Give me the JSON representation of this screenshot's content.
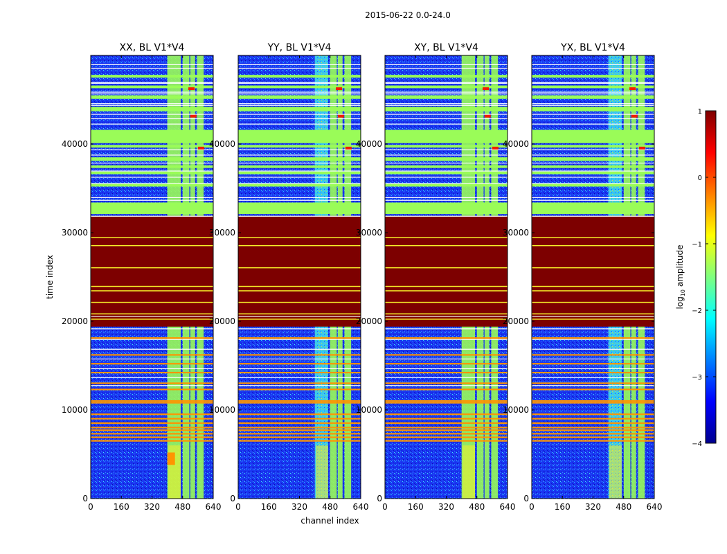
{
  "figure": {
    "suptitle": "2015-06-22 0.0-24.0",
    "colorbar": {
      "label_prefix": "log",
      "label_sub": "10",
      "label_suffix": " amplitude",
      "range": [
        -4,
        1
      ],
      "ticks": [
        1,
        0,
        -1,
        -2,
        -3,
        -4
      ],
      "tick_labels": [
        "1",
        "0",
        "−1",
        "−2",
        "−3",
        "−4"
      ]
    },
    "colors": {
      "deep_blue": "#1024e8",
      "mid_blue": "#1a7dff",
      "cyan": "#36f0f0",
      "green": "#9afc58",
      "yellow": "#f7f02a",
      "orange": "#ff9400",
      "red": "#f21e00",
      "dark_red": "#7d0000"
    }
  },
  "chart_data": [
    {
      "type": "heatmap",
      "title": "XX, BL V1*V4",
      "xlabel": "",
      "ylabel": "time index",
      "xlim": [
        0,
        640
      ],
      "ylim": [
        0,
        50000
      ],
      "xticks": [
        0,
        160,
        320,
        480,
        640
      ],
      "yticks": [
        0,
        10000,
        20000,
        30000,
        40000
      ],
      "ytick_labels": [
        "0",
        "10000",
        "20000",
        "30000",
        "40000"
      ],
      "description_value": "log10 amplitude"
    },
    {
      "type": "heatmap",
      "title": "YY, BL V1*V4",
      "xlabel": "channel index",
      "ylabel": "",
      "xlim": [
        0,
        640
      ],
      "ylim": [
        0,
        50000
      ],
      "xticks": [
        0,
        160,
        320,
        480,
        640
      ],
      "yticks": [
        0,
        10000,
        20000,
        30000,
        40000
      ],
      "ytick_labels": [
        "0",
        "10000",
        "20000",
        "30000",
        "40000"
      ],
      "description_value": "log10 amplitude"
    },
    {
      "type": "heatmap",
      "title": "XY, BL V1*V4",
      "xlabel": "",
      "ylabel": "",
      "xlim": [
        0,
        640
      ],
      "ylim": [
        0,
        50000
      ],
      "xticks": [
        0,
        160,
        320,
        480,
        640
      ],
      "yticks": [
        0,
        10000,
        20000,
        30000,
        40000
      ],
      "ytick_labels": [
        "0",
        "10000",
        "20000",
        "30000",
        "40000"
      ],
      "description_value": "log10 amplitude"
    },
    {
      "type": "heatmap",
      "title": "YX, BL V1*V4",
      "xlabel": "",
      "ylabel": "",
      "xlim": [
        0,
        640
      ],
      "ylim": [
        0,
        50000
      ],
      "xticks": [
        0,
        160,
        320,
        480,
        640
      ],
      "yticks": [
        0,
        10000,
        20000,
        30000,
        40000
      ],
      "ytick_labels": [
        "0",
        "10000",
        "20000",
        "30000",
        "40000"
      ],
      "description_value": "log10 amplitude"
    }
  ]
}
